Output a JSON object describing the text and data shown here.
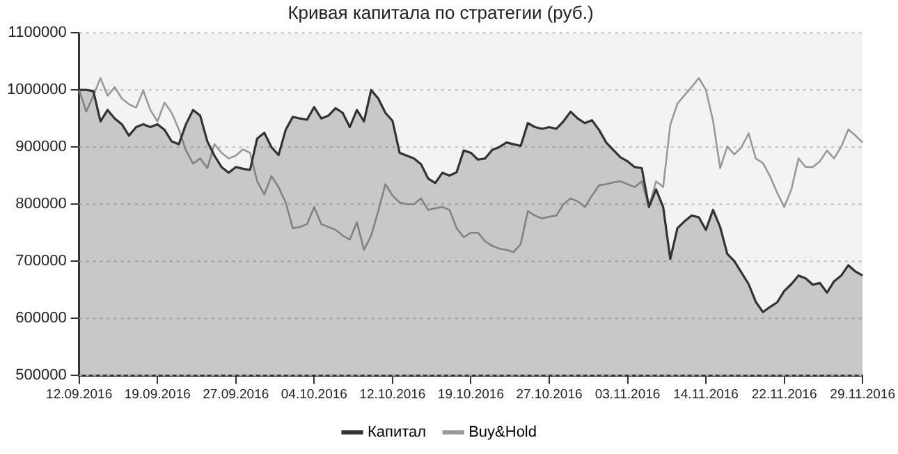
{
  "chart_data": {
    "type": "line",
    "title": "Кривая капитала по стратегии (руб.)",
    "categories": [
      "12.09.2016",
      null,
      null,
      null,
      null,
      null,
      null,
      null,
      null,
      null,
      null,
      "19.09.2016",
      null,
      null,
      null,
      null,
      null,
      null,
      null,
      null,
      null,
      null,
      "27.09.2016",
      null,
      null,
      null,
      null,
      null,
      null,
      null,
      null,
      null,
      null,
      "04.10.2016",
      null,
      null,
      null,
      null,
      null,
      null,
      null,
      null,
      null,
      null,
      "12.10.2016",
      null,
      null,
      null,
      null,
      null,
      null,
      null,
      null,
      null,
      null,
      "19.10.2016",
      null,
      null,
      null,
      null,
      null,
      null,
      null,
      null,
      null,
      null,
      "27.10.2016",
      null,
      null,
      null,
      null,
      null,
      null,
      null,
      null,
      null,
      null,
      "03.11.2016",
      null,
      null,
      null,
      null,
      null,
      null,
      null,
      null,
      null,
      null,
      "14.11.2016",
      null,
      null,
      null,
      null,
      null,
      null,
      null,
      null,
      null,
      null,
      "22.11.2016",
      null,
      null,
      null,
      null,
      null,
      null,
      null,
      null,
      null,
      null,
      "29.11.2016"
    ],
    "series": [
      {
        "name": "Капитал",
        "type": "area",
        "color": "#333333",
        "values": [
          1000000,
          1000000,
          998000,
          945000,
          965000,
          950000,
          940000,
          920000,
          935000,
          940000,
          935000,
          940000,
          930000,
          910000,
          905000,
          940000,
          965000,
          955000,
          910000,
          885000,
          865000,
          855000,
          865000,
          862000,
          860000,
          915000,
          925000,
          900000,
          886000,
          930000,
          953000,
          950000,
          948000,
          970000,
          950000,
          955000,
          968000,
          960000,
          935000,
          965000,
          945000,
          1000000,
          985000,
          960000,
          946000,
          890000,
          885000,
          880000,
          870000,
          845000,
          837000,
          855000,
          850000,
          856000,
          894000,
          890000,
          878000,
          880000,
          895000,
          900000,
          908000,
          905000,
          902000,
          942000,
          935000,
          932000,
          935000,
          932000,
          945000,
          962000,
          950000,
          942000,
          947000,
          930000,
          908000,
          895000,
          882000,
          875000,
          865000,
          863000,
          795000,
          826000,
          795000,
          704000,
          758000,
          770000,
          780000,
          777000,
          755000,
          790000,
          760000,
          713000,
          700000,
          680000,
          660000,
          629000,
          611000,
          620000,
          628000,
          648000,
          660000,
          675000,
          670000,
          659000,
          662000,
          645000,
          665000,
          675000,
          693000,
          682000,
          675000
        ]
      },
      {
        "name": "Buy&Hold",
        "type": "line",
        "color": "#999999",
        "values": [
          1000000,
          962000,
          990000,
          1021000,
          990000,
          1005000,
          985000,
          975000,
          969000,
          999000,
          965000,
          945000,
          978000,
          960000,
          931000,
          894000,
          871000,
          880000,
          863000,
          905000,
          890000,
          880000,
          885000,
          896000,
          890000,
          840000,
          817000,
          849000,
          830000,
          803000,
          758000,
          760000,
          765000,
          795000,
          765000,
          760000,
          755000,
          745000,
          738000,
          768000,
          720000,
          745000,
          788000,
          835000,
          815000,
          803000,
          800000,
          800000,
          810000,
          790000,
          793000,
          795000,
          790000,
          758000,
          742000,
          750000,
          750000,
          735000,
          727000,
          722000,
          720000,
          716000,
          730000,
          788000,
          780000,
          775000,
          778000,
          780000,
          800000,
          810000,
          805000,
          795000,
          815000,
          833000,
          835000,
          838000,
          840000,
          835000,
          830000,
          840000,
          795000,
          840000,
          830000,
          939000,
          976000,
          991000,
          1005000,
          1021000,
          1000000,
          946000,
          863000,
          901000,
          887000,
          900000,
          924000,
          880000,
          872000,
          849000,
          820000,
          795000,
          826000,
          880000,
          865000,
          865000,
          875000,
          894000,
          880000,
          901000,
          931000,
          920000,
          908000
        ]
      }
    ],
    "ylim": [
      500000,
      1100000
    ],
    "yticks": [
      500000,
      600000,
      700000,
      800000,
      900000,
      1000000,
      1100000
    ],
    "grid": "y",
    "legend": "bottom",
    "line_style": "solid",
    "marker": "none"
  }
}
